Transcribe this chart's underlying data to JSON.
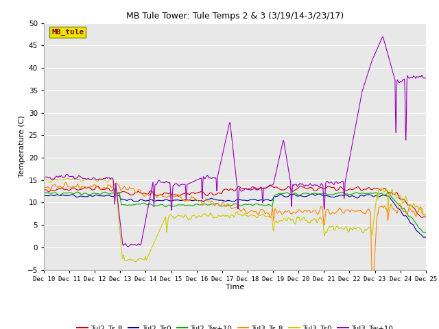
{
  "title": "MB Tule Tower: Tule Temps 2 & 3 (3/19/14-3/23/17)",
  "xlabel": "Time",
  "ylabel": "Temperature (C)",
  "ylim": [
    -5,
    50
  ],
  "yticks": [
    -5,
    0,
    5,
    10,
    15,
    20,
    25,
    30,
    35,
    40,
    45,
    50
  ],
  "xtick_labels": [
    "Dec 10",
    "Dec 11",
    "Dec 12",
    "Dec 13",
    "Dec 14",
    "Dec 15",
    "Dec 16",
    "Dec 17",
    "Dec 18",
    "Dec 19",
    "Dec 20",
    "Dec 21",
    "Dec 22",
    "Dec 23",
    "Dec 24",
    "Dec 25"
  ],
  "num_points": 1500,
  "fig_bg_color": "#ffffff",
  "plot_bg_color": "#e8e8e8",
  "grid_color": "#ffffff",
  "legend_label": "MB_tule",
  "legend_box_color": "#e8e800",
  "legend_text_color": "#880000",
  "legend_edge_color": "#888800",
  "series": [
    {
      "name": "Tul2_Ts-8",
      "color": "#cc0000",
      "linewidth": 0.8
    },
    {
      "name": "Tul2_Ts0",
      "color": "#000099",
      "linewidth": 0.8
    },
    {
      "name": "Tul2_Tw+10",
      "color": "#00aa00",
      "linewidth": 0.8
    },
    {
      "name": "Tul3_Ts-8",
      "color": "#ff8800",
      "linewidth": 0.8
    },
    {
      "name": "Tul3_Ts0",
      "color": "#cccc00",
      "linewidth": 0.8
    },
    {
      "name": "Tul3_Tw+10",
      "color": "#9900bb",
      "linewidth": 0.8
    }
  ]
}
